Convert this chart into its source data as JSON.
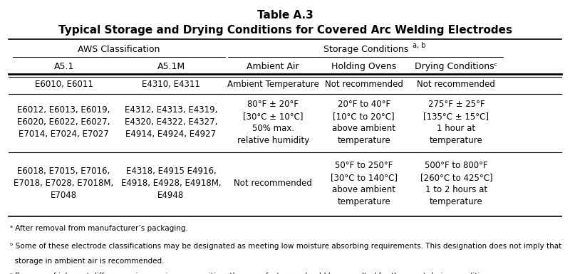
{
  "title_line1": "Table A.3",
  "title_line2": "Typical Storage and Drying Conditions for Covered Arc Welding Electrodes",
  "grp_header_aws": "AWS Classification",
  "grp_header_storage": "Storage Conditionsᵃᵇ ᵇ",
  "grp_header_storage_text": "Storage Conditions",
  "grp_header_storage_sup": "a, b",
  "sub_headers": [
    "A5.1",
    "A5.1M",
    "Ambient Air",
    "Holding Ovens",
    "Drying Conditionsᶜ"
  ],
  "rows": [
    [
      "E6010, E6011",
      "E4310, E4311",
      "Ambient Temperature",
      "Not recommended",
      "Not recommended"
    ],
    [
      "E6012, E6013, E6019,\nE6020, E6022, E6027,\nE7014, E7024, E7027",
      "E4312, E4313, E4319,\nE4320, E4322, E4327,\nE4914, E4924, E4927",
      "80°F ± 20°F\n[30°C ± 10°C]\n50% max.\nrelative humidity",
      "20°F to 40°F\n[10°C to 20°C]\nabove ambient\ntemperature",
      "275°F ± 25°F\n[135°C ± 15°C]\n1 hour at\ntemperature"
    ],
    [
      "E6018, E7015, E7016,\nE7018, E7028, E7018M,\nE7048",
      "E4318, E4915 E4916,\nE4918, E4928, E4918M,\nE4948",
      "Not recommended",
      "50°F to 250°F\n[30°C to 140°C]\nabove ambient\ntemperature",
      "500°F to 800°F\n[260°C to 425°C]\n1 to 2 hours at\ntemperature"
    ]
  ],
  "footnote_a": "ᵃ After removal from manufacturer’s packaging.",
  "footnote_b": "ᵇ Some of these electrode classifications may be designated as meeting low moisture absorbing requirements. This designation does not imply that storage in ambient air is recommended.",
  "footnote_b2": "  storage in ambient air is recommended.",
  "footnote_c": "ᶜ Because of inherent differences in covering composition, the manufacturers should be consulted for the exact drying conditions.",
  "bg_color": "#ffffff",
  "text_color": "#000000",
  "title_fontsize": 11,
  "header_fontsize": 9,
  "cell_fontsize": 8.5,
  "footnote_fontsize": 7.5
}
